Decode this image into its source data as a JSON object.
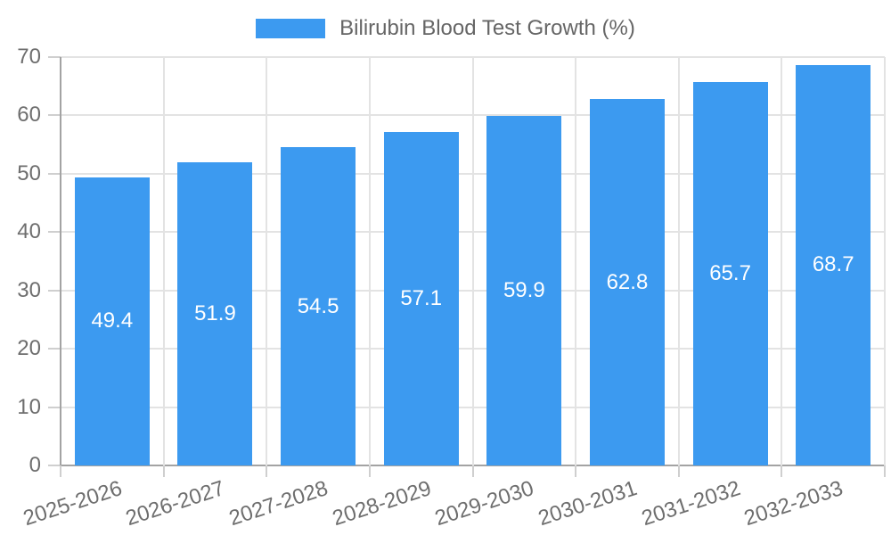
{
  "chart_data": {
    "type": "bar",
    "title": "Bilirubin Blood Test Growth (%)",
    "legend": {
      "position": "top",
      "label": "Bilirubin Blood Test Growth (%)"
    },
    "categories": [
      "2025-2026",
      "2026-2027",
      "2027-2028",
      "2028-2029",
      "2029-2030",
      "2030-2031",
      "2031-2032",
      "2032-2033"
    ],
    "values": [
      49.4,
      51.9,
      54.5,
      57.1,
      59.9,
      62.8,
      65.7,
      68.7
    ],
    "xlabel": "",
    "ylabel": "",
    "ylim": [
      0,
      70
    ],
    "ytick_step": 10,
    "yticks": [
      0,
      10,
      20,
      30,
      40,
      50,
      60,
      70
    ],
    "grid": true,
    "value_labels_shown": true,
    "x_label_rotation_deg": -18,
    "colors": {
      "bar": "#3C9AF0",
      "grid_line": "#E3E3E3",
      "axis_line": "#A3A3A3",
      "tick_mark": "#CFCFCF",
      "tick_text": "#6E6E6E",
      "legend_text": "#666666",
      "value_label": "#FFFFFF",
      "background": "#FFFFFF"
    }
  }
}
